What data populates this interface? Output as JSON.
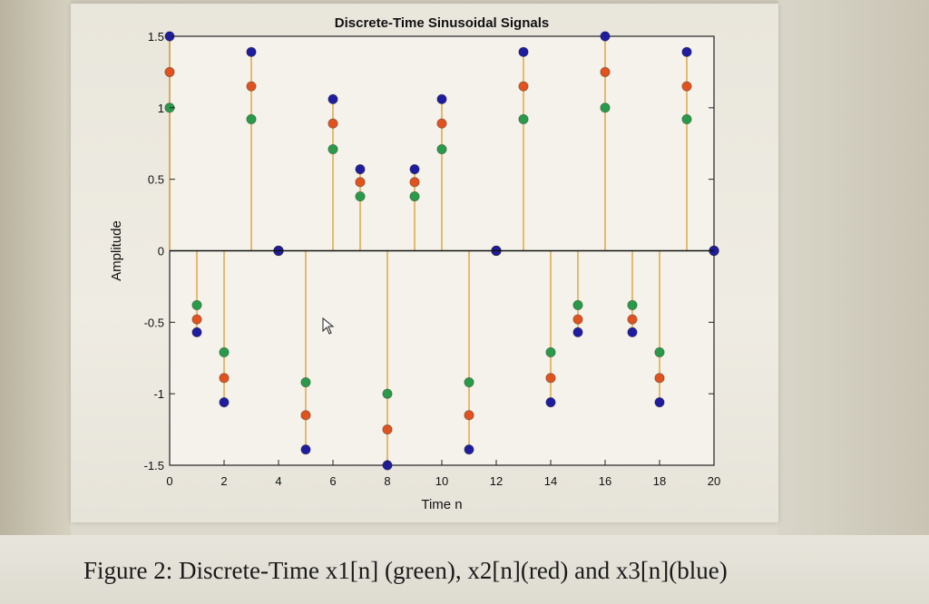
{
  "caption": "Figure 2:  Discrete-Time x1[n] (green), x2[n](red) and x3[n](blue)",
  "chart_data": {
    "type": "stem",
    "title": "Discrete-Time Sinusoidal Signals",
    "xlabel": "Time n",
    "ylabel": "Amplitude",
    "xlim": [
      0,
      20
    ],
    "ylim": [
      -1.5,
      1.5
    ],
    "xticks": [
      "0",
      "2",
      "4",
      "6",
      "8",
      "10",
      "12",
      "14",
      "16",
      "18",
      "20"
    ],
    "yticks": [
      "-1.5",
      "-1",
      "-0.5",
      "0",
      "0.5",
      "1",
      "1.5"
    ],
    "x": [
      0,
      1,
      2,
      3,
      4,
      5,
      6,
      7,
      8,
      9,
      10,
      11,
      12,
      13,
      14,
      15,
      16,
      17,
      18,
      19,
      20
    ],
    "series": [
      {
        "color": "#2a9a4a",
        "values": [
          1.0,
          -0.38,
          -0.71,
          0.92,
          0.0,
          -0.92,
          0.71,
          0.38,
          -1.0,
          0.38,
          0.71,
          -0.92,
          0.0,
          0.92,
          -0.71,
          -0.38,
          1.0,
          -0.38,
          -0.71,
          0.92,
          0.0
        ]
      },
      {
        "color": "#e0531f",
        "values": [
          1.25,
          -0.48,
          -0.89,
          1.15,
          0.0,
          -1.15,
          0.89,
          0.48,
          -1.25,
          0.48,
          0.89,
          -1.15,
          0.0,
          1.15,
          -0.89,
          -0.48,
          1.25,
          -0.48,
          -0.89,
          1.15,
          0.0
        ]
      },
      {
        "color": "#1f1d9e",
        "values": [
          1.5,
          -0.57,
          -1.06,
          1.39,
          0.0,
          -1.39,
          1.06,
          0.57,
          -1.5,
          0.57,
          1.06,
          -1.39,
          0.0,
          1.39,
          -1.06,
          -0.57,
          1.5,
          -0.57,
          -1.06,
          1.39,
          0.0
        ]
      }
    ],
    "stem_color": "#e0a23a",
    "grid": false
  }
}
